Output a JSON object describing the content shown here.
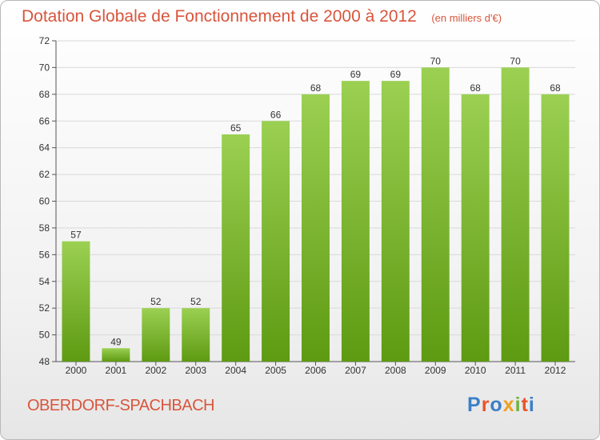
{
  "header": {
    "title": "Dotation Globale de Fonctionnement de 2000 à 2012",
    "unit": "(en milliers d'€)"
  },
  "footer": {
    "commune": "OBERDORF-SPACHBACH",
    "brand": "Proxiti",
    "brand_colors": [
      "#3a7fc8",
      "#e8542c",
      "#3a7fc8",
      "#f0a020",
      "#6cb33f",
      "#e8542c",
      "#3a7fc8"
    ]
  },
  "colors": {
    "accent": "#d9553c",
    "bar_top": "#9bd052",
    "bar_bottom": "#5e9a12",
    "grid": "#d9d9d9",
    "axis": "#555555"
  },
  "chart_data": {
    "type": "bar",
    "title": "Dotation Globale de Fonctionnement de 2000 à 2012",
    "subtitle": "(en milliers d'€)",
    "categories": [
      "2000",
      "2001",
      "2002",
      "2003",
      "2004",
      "2005",
      "2006",
      "2007",
      "2008",
      "2009",
      "2010",
      "2011",
      "2012"
    ],
    "values": [
      57,
      49,
      52,
      52,
      65,
      66,
      68,
      69,
      69,
      70,
      68,
      70,
      68
    ],
    "data_labels": [
      "57",
      "49",
      "52",
      "52",
      "65",
      "66",
      "68",
      "69",
      "69",
      "70",
      "68",
      "70",
      "68"
    ],
    "ylim": [
      48,
      72
    ],
    "yticks": [
      48,
      50,
      52,
      54,
      56,
      58,
      60,
      62,
      64,
      66,
      68,
      70,
      72
    ],
    "grid": true,
    "legend": "none",
    "xlabel": "",
    "ylabel": ""
  }
}
